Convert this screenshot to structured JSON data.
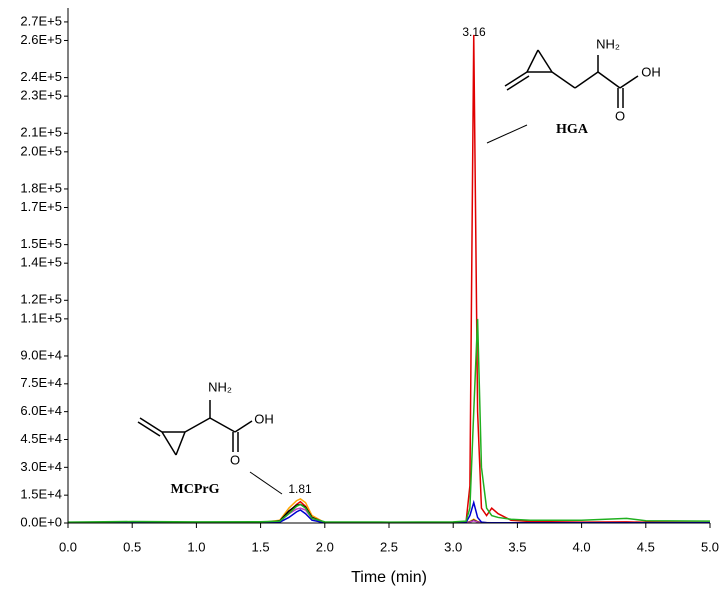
{
  "chart_data": {
    "type": "line",
    "x_label": "Time (min)",
    "xlim": [
      0,
      5
    ],
    "ylim": [
      0,
      277500
    ],
    "xticks": [
      {
        "value": 0,
        "label": "0.0"
      },
      0.5,
      {
        "value": 1,
        "label": "1.0"
      },
      1.5,
      {
        "value": 2,
        "label": "2.0"
      },
      2.5,
      {
        "value": 3,
        "label": "3.0"
      },
      3.5,
      {
        "value": 4,
        "label": "4.0"
      },
      4.5,
      {
        "value": 5,
        "label": "5.0"
      }
    ],
    "yticks": [
      {
        "value": 0,
        "label": "0.0E+0"
      },
      {
        "value": 15000,
        "label": "1.5E+4"
      },
      {
        "value": 30000,
        "label": "3.0E+4"
      },
      {
        "value": 45000,
        "label": "4.5E+4"
      },
      {
        "value": 60000,
        "label": "6.0E+4"
      },
      {
        "value": 75000,
        "label": "7.5E+4"
      },
      {
        "value": 90000,
        "label": "9.0E+4"
      },
      {
        "value": 110000,
        "label": "1.1E+5"
      },
      {
        "value": 120000,
        "label": "1.2E+5"
      },
      {
        "value": 140000,
        "label": "1.4E+5"
      },
      {
        "value": 150000,
        "label": "1.5E+5"
      },
      {
        "value": 170000,
        "label": "1.7E+5"
      },
      {
        "value": 180000,
        "label": "1.8E+5"
      },
      {
        "value": 200000,
        "label": "2.0E+5"
      },
      {
        "value": 210000,
        "label": "2.1E+5"
      },
      {
        "value": 230000,
        "label": "2.3E+5"
      },
      {
        "value": 240000,
        "label": "2.4E+5"
      },
      {
        "value": 260000,
        "label": "2.6E+5"
      },
      {
        "value": 270000,
        "label": "2.7E+5"
      }
    ],
    "x": [
      0,
      0.5,
      1.0,
      1.5,
      1.65,
      1.72,
      1.78,
      1.81,
      1.85,
      1.9,
      2.0,
      2.5,
      3.0,
      3.1,
      3.13,
      3.16,
      3.19,
      3.22,
      3.26,
      3.3,
      3.35,
      3.45,
      3.6,
      4.0,
      4.35,
      4.5,
      5.0
    ],
    "series": [
      {
        "color": "#ffa500",
        "values": [
          100,
          100,
          100,
          200,
          1500,
          8000,
          12000,
          13000,
          11000,
          4000,
          200,
          100,
          100,
          200,
          800,
          2000,
          800,
          300,
          200,
          100,
          100,
          100,
          100,
          100,
          100,
          100,
          100
        ]
      },
      {
        "color": "#e00000",
        "values": [
          200,
          300,
          200,
          300,
          1000,
          6000,
          10000,
          11500,
          9000,
          3000,
          300,
          200,
          300,
          500,
          20000,
          263000,
          60000,
          8000,
          4000,
          8000,
          5000,
          1500,
          800,
          500,
          600,
          400,
          300
        ]
      },
      {
        "color": "#000000",
        "values": [
          100,
          100,
          100,
          150,
          1200,
          6500,
          9500,
          10000,
          8500,
          3000,
          150,
          100,
          100,
          150,
          600,
          1500,
          600,
          200,
          100,
          100,
          100,
          100,
          100,
          100,
          100,
          100,
          100
        ]
      },
      {
        "color": "#c040c0",
        "values": [
          100,
          100,
          100,
          150,
          900,
          5000,
          7500,
          8000,
          7000,
          2500,
          150,
          100,
          100,
          150,
          500,
          1200,
          500,
          200,
          100,
          100,
          100,
          100,
          100,
          100,
          100,
          100,
          100
        ]
      },
      {
        "color": "#0000d0",
        "values": [
          100,
          100,
          100,
          100,
          500,
          3000,
          6000,
          7000,
          5000,
          1500,
          100,
          100,
          100,
          300,
          4000,
          11000,
          3000,
          500,
          200,
          100,
          100,
          100,
          100,
          100,
          100,
          100,
          100
        ]
      },
      {
        "color": "#20b020",
        "values": [
          500,
          800,
          600,
          700,
          1000,
          5000,
          9000,
          10000,
          8000,
          2500,
          600,
          500,
          600,
          1000,
          8000,
          60000,
          110000,
          30000,
          8000,
          4000,
          3000,
          2000,
          1500,
          1500,
          2500,
          1200,
          1000
        ]
      }
    ],
    "annotations": [
      "3.16",
      "1.81",
      "HGA",
      "MCPrG"
    ]
  },
  "structures": {
    "hga": {
      "amine": "NH₂",
      "hydroxyl": "OH",
      "carbonyl": "O"
    },
    "mcprg": {
      "amine": "NH₂",
      "hydroxyl": "OH",
      "carbonyl": "O"
    }
  }
}
